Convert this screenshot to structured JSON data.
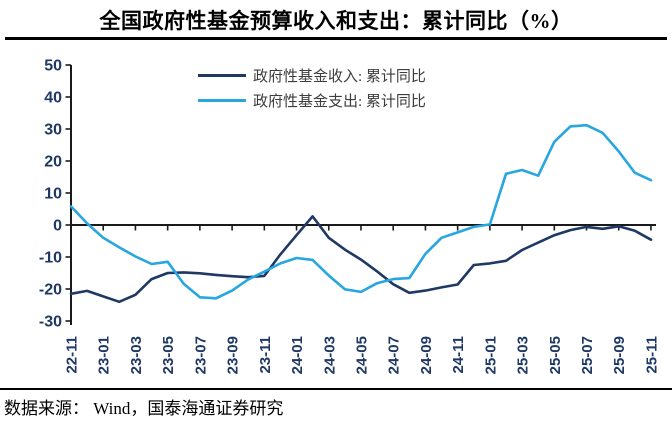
{
  "title": "全国政府性基金预算收入和支出：累计同比（%）",
  "source": "数据来源： Wind，国泰海通证券研究",
  "colors": {
    "revenue_line": "#1F3864",
    "expenditure_line": "#27A6E0",
    "axis": "#1a1a1a",
    "tick_label": "#1F3864",
    "legend_text": "#3d3d3d"
  },
  "legend": {
    "revenue_label": "政府性基金收入: 累计同比",
    "expenditure_label": "政府性基金支出: 累计同比"
  },
  "chart_data": {
    "type": "line",
    "x": [
      "22-11",
      "22-12",
      "23-01",
      "23-02",
      "23-03",
      "23-04",
      "23-05",
      "23-06",
      "23-07",
      "23-08",
      "23-09",
      "23-10",
      "23-11",
      "23-12",
      "24-01",
      "24-02",
      "24-03",
      "24-04",
      "24-05",
      "24-06",
      "24-07",
      "24-08",
      "24-09",
      "24-10",
      "24-11",
      "24-12",
      "25-01",
      "25-02",
      "25-03",
      "25-04",
      "25-05",
      "25-06",
      "25-07",
      "25-08",
      "25-09",
      "25-10",
      "25-11"
    ],
    "x_tick_labels": [
      "22-11",
      "23-01",
      "23-03",
      "23-05",
      "23-07",
      "23-09",
      "23-11",
      "24-01",
      "24-03",
      "24-05",
      "24-07",
      "24-09",
      "24-11",
      "25-01",
      "25-03",
      "25-05",
      "25-07",
      "25-09",
      "25-11"
    ],
    "series": [
      {
        "name": "政府性基金收入: 累计同比",
        "color": "#1F3864",
        "values": [
          -21.5,
          -20.6,
          -22.3,
          -24.0,
          -21.8,
          -16.9,
          -15.0,
          -14.8,
          -15.1,
          -15.6,
          -16.0,
          -16.3,
          -15.9,
          -9.2,
          -3.2,
          2.7,
          -4.0,
          -7.7,
          -10.8,
          -14.5,
          -18.5,
          -21.2,
          -20.5,
          -19.5,
          -18.6,
          -12.5,
          -12.0,
          -11.2,
          -7.8,
          -5.5,
          -3.2,
          -1.6,
          -0.6,
          -1.2,
          -0.4,
          -1.8,
          -4.6
        ]
      },
      {
        "name": "政府性基金支出: 累计同比",
        "color": "#27A6E0",
        "values": [
          5.8,
          0.5,
          -4.0,
          -7.0,
          -9.8,
          -12.2,
          -11.5,
          -18.4,
          -22.6,
          -22.9,
          -20.5,
          -17.0,
          -14.6,
          -12.0,
          -10.3,
          -10.9,
          -15.8,
          -20.1,
          -20.9,
          -18.2,
          -16.9,
          -16.6,
          -9.0,
          -4.0,
          -2.3,
          -0.6,
          0.2,
          16.0,
          17.2,
          15.4,
          26.0,
          30.8,
          31.2,
          28.8,
          23.0,
          16.3,
          14.0
        ]
      }
    ],
    "ylim": [
      -30,
      50
    ],
    "yticks": [
      50,
      40,
      30,
      20,
      10,
      0,
      -10,
      -20,
      -30
    ],
    "grid": false,
    "legend_position": "top-center",
    "x_label_rotation": -90
  }
}
